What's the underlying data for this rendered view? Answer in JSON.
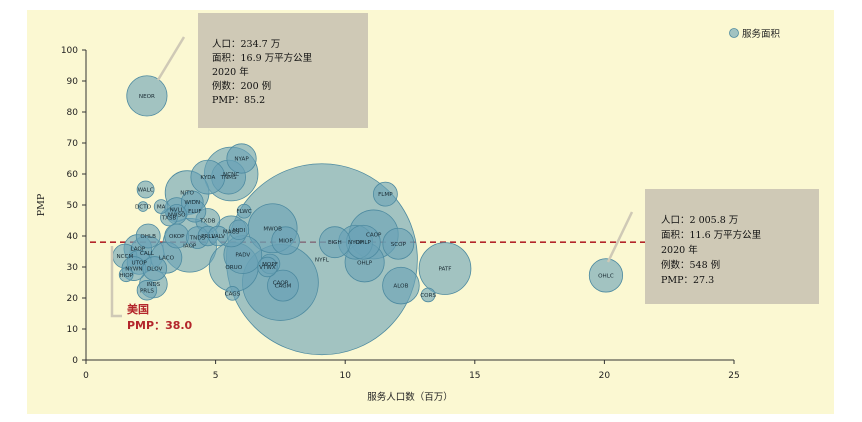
{
  "chart_data": {
    "type": "scatter",
    "xlabel": "服务人口数（百万）",
    "ylabel": "PMP",
    "xlim": [
      0,
      25
    ],
    "ylim": [
      0,
      100
    ],
    "xticks": [
      0,
      5,
      10,
      15,
      20,
      25
    ],
    "yticks": [
      0,
      10,
      20,
      30,
      40,
      50,
      60,
      70,
      80,
      90,
      100
    ],
    "legend": {
      "label": "服务面积",
      "position": "top-right"
    },
    "reference_line": {
      "y": 38.0,
      "label": "美国",
      "value_label": "PMP：38.0"
    },
    "colors": {
      "background": "#fbf8d2",
      "bubble": "#6aa3b7",
      "reference": "#b3262b",
      "annotation_box": "#cfc9b6"
    },
    "annotations": [
      {
        "target": "NEOR",
        "lines": [
          "人口：234.7 万",
          "面积：16.9 万平方公里",
          "2020 年",
          "例数：200 例",
          "PMP：85.2"
        ]
      },
      {
        "target": "OHLC",
        "lines": [
          "人口：2 005.8 万",
          "面积：11.6 万平方公里",
          "2020 年",
          "例数：548 例",
          "PMP：27.3"
        ]
      }
    ],
    "points": [
      {
        "label": "NEOR",
        "x": 2.35,
        "y": 85.2,
        "size": 16.9
      },
      {
        "label": "OHLC",
        "x": 20.06,
        "y": 27.3,
        "size": 11.6
      },
      {
        "label": "NYFL",
        "x": 9.1,
        "y": 32.5,
        "size": 380
      },
      {
        "label": "NYAP",
        "x": 6.0,
        "y": 65.0,
        "size": 9
      },
      {
        "label": "NCNC",
        "x": 5.6,
        "y": 60.0,
        "size": 30
      },
      {
        "label": "TNMS",
        "x": 5.5,
        "y": 59.0,
        "size": 12
      },
      {
        "label": "KYDA",
        "x": 4.7,
        "y": 59.0,
        "size": 12
      },
      {
        "label": "NJTO",
        "x": 3.9,
        "y": 54.0,
        "size": 20
      },
      {
        "label": "WIDN",
        "x": 4.1,
        "y": 51.0,
        "size": 5
      },
      {
        "label": "WALC",
        "x": 2.3,
        "y": 55.0,
        "size": 3
      },
      {
        "label": "DCTO",
        "x": 2.2,
        "y": 49.5,
        "size": 1
      },
      {
        "label": "MA",
        "x": 2.9,
        "y": 49.5,
        "size": 2
      },
      {
        "label": "FLUF",
        "x": 4.2,
        "y": 48.0,
        "size": 5
      },
      {
        "label": "NVLL",
        "x": 3.5,
        "y": 48.5,
        "size": 6
      },
      {
        "label": "NWSO",
        "x": 3.5,
        "y": 47.0,
        "size": 4
      },
      {
        "label": "TXSB",
        "x": 3.2,
        "y": 46.0,
        "size": 3
      },
      {
        "label": "FLWC",
        "x": 6.1,
        "y": 48.0,
        "size": 2
      },
      {
        "label": "TXDB",
        "x": 4.7,
        "y": 45.0,
        "size": 6
      },
      {
        "label": "FLMP",
        "x": 11.55,
        "y": 53.5,
        "size": 6
      },
      {
        "label": "MWOB",
        "x": 7.2,
        "y": 42.5,
        "size": 25
      },
      {
        "label": "MIOP",
        "x": 7.7,
        "y": 38.5,
        "size": 8
      },
      {
        "label": "MAGS",
        "x": 5.6,
        "y": 41.5,
        "size": 10
      },
      {
        "label": "MIDI",
        "x": 5.9,
        "y": 42.0,
        "size": 4
      },
      {
        "label": "PRLL",
        "x": 4.7,
        "y": 40.0,
        "size": 4
      },
      {
        "label": "VALV",
        "x": 5.1,
        "y": 40.0,
        "size": 4
      },
      {
        "label": "OKOP",
        "x": 3.5,
        "y": 40.0,
        "size": 6
      },
      {
        "label": "TNDS",
        "x": 4.3,
        "y": 39.5,
        "size": 5
      },
      {
        "label": "OHLB",
        "x": 2.4,
        "y": 40.0,
        "size": 6
      },
      {
        "label": "IAOP",
        "x": 4.0,
        "y": 37.0,
        "size": 30
      },
      {
        "label": "NCCM",
        "x": 1.5,
        "y": 33.5,
        "size": 6
      },
      {
        "label": "LAOP",
        "x": 2.0,
        "y": 36.0,
        "size": 8
      },
      {
        "label": "CALL",
        "x": 2.35,
        "y": 34.5,
        "size": 12
      },
      {
        "label": "UTOP",
        "x": 2.05,
        "y": 31.5,
        "size": 6
      },
      {
        "label": "NYWN",
        "x": 1.85,
        "y": 29.5,
        "size": 6
      },
      {
        "label": "DLOV",
        "x": 2.65,
        "y": 29.5,
        "size": 6
      },
      {
        "label": "HIOP",
        "x": 1.55,
        "y": 27.5,
        "size": 2
      },
      {
        "label": "LACO",
        "x": 3.1,
        "y": 33.0,
        "size": 10
      },
      {
        "label": "INDS",
        "x": 2.6,
        "y": 24.5,
        "size": 8
      },
      {
        "label": "PRLS",
        "x": 2.35,
        "y": 22.5,
        "size": 4
      },
      {
        "label": "CAGS",
        "x": 5.65,
        "y": 21.5,
        "size": 2
      },
      {
        "label": "PADV",
        "x": 6.05,
        "y": 34.0,
        "size": 15
      },
      {
        "label": "ORUO",
        "x": 5.7,
        "y": 30.0,
        "size": 25
      },
      {
        "label": "MOPF",
        "x": 7.1,
        "y": 31.0,
        "size": 4
      },
      {
        "label": "VTWX",
        "x": 7.0,
        "y": 30.0,
        "size": 4
      },
      {
        "label": "CAOP",
        "x": 7.5,
        "y": 25.0,
        "size": 60
      },
      {
        "label": "CAGM",
        "x": 7.6,
        "y": 24.0,
        "size": 10
      },
      {
        "label": "EIGH",
        "x": 9.6,
        "y": 38.0,
        "size": 10
      },
      {
        "label": "NYOP",
        "x": 10.4,
        "y": 38.0,
        "size": 12
      },
      {
        "label": "OHLP",
        "x": 10.7,
        "y": 38.0,
        "size": 12
      },
      {
        "label": "CAOP",
        "x": 11.1,
        "y": 40.5,
        "size": 25
      },
      {
        "label": "SCOP",
        "x": 12.05,
        "y": 37.5,
        "size": 10
      },
      {
        "label": "OHLP",
        "x": 10.75,
        "y": 31.5,
        "size": 16
      },
      {
        "label": "ALOB",
        "x": 12.15,
        "y": 24.0,
        "size": 14
      },
      {
        "label": "CORS",
        "x": 13.2,
        "y": 21.0,
        "size": 2
      },
      {
        "label": "PATF",
        "x": 13.85,
        "y": 29.5,
        "size": 28
      }
    ]
  }
}
